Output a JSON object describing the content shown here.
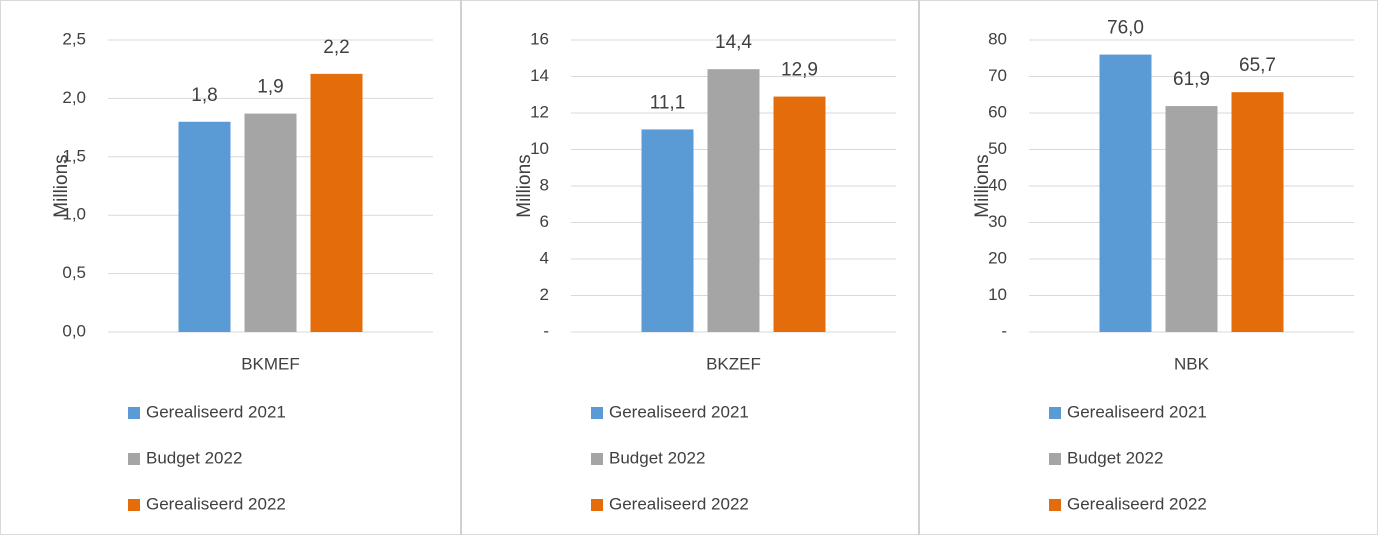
{
  "chart_data": [
    {
      "type": "bar",
      "ylabel": "Millions",
      "categories": [
        "BKMEF"
      ],
      "series": [
        {
          "name": "Gerealiseerd 2021",
          "color": "#5b9bd5",
          "values": [
            1.8
          ],
          "value_labels": [
            "1,8"
          ]
        },
        {
          "name": "Budget 2022",
          "color": "#a5a5a5",
          "values": [
            1.87
          ],
          "value_labels": [
            "1,9"
          ]
        },
        {
          "name": "Gerealiseerd 2022",
          "color": "#e46c0a",
          "values": [
            2.21
          ],
          "value_labels": [
            "2,2"
          ]
        }
      ],
      "ylim": [
        0,
        2.5
      ],
      "yticks": [
        {
          "value": 0,
          "label": "0,0"
        },
        {
          "value": 0.5,
          "label": "0,5"
        },
        {
          "value": 1,
          "label": "1,0"
        },
        {
          "value": 1.5,
          "label": "1,5"
        },
        {
          "value": 2,
          "label": "2,0"
        },
        {
          "value": 2.5,
          "label": "2,5"
        }
      ],
      "grid": true,
      "legend": "bottom"
    },
    {
      "type": "bar",
      "ylabel": "Millions",
      "categories": [
        "BKZEF"
      ],
      "series": [
        {
          "name": "Gerealiseerd 2021",
          "color": "#5b9bd5",
          "values": [
            11.1
          ],
          "value_labels": [
            "11,1"
          ]
        },
        {
          "name": "Budget 2022",
          "color": "#a5a5a5",
          "values": [
            14.4
          ],
          "value_labels": [
            "14,4"
          ]
        },
        {
          "name": "Gerealiseerd 2022",
          "color": "#e46c0a",
          "values": [
            12.9
          ],
          "value_labels": [
            "12,9"
          ]
        }
      ],
      "ylim": [
        0,
        16
      ],
      "yticks": [
        {
          "value": 0,
          "label": "-"
        },
        2,
        4,
        6,
        8,
        10,
        12,
        14,
        16
      ],
      "grid": true,
      "legend": "bottom"
    },
    {
      "type": "bar",
      "ylabel": "Millions",
      "categories": [
        "NBK"
      ],
      "series": [
        {
          "name": "Gerealiseerd 2021",
          "color": "#5b9bd5",
          "values": [
            76.0
          ],
          "value_labels": [
            "76,0"
          ]
        },
        {
          "name": "Budget 2022",
          "color": "#a5a5a5",
          "values": [
            61.9
          ],
          "value_labels": [
            "61,9"
          ]
        },
        {
          "name": "Gerealiseerd 2022",
          "color": "#e46c0a",
          "values": [
            65.7
          ],
          "value_labels": [
            "65,7"
          ]
        }
      ],
      "ylim": [
        0,
        80
      ],
      "yticks": [
        {
          "value": 0,
          "label": "-"
        },
        10,
        20,
        30,
        40,
        50,
        60,
        70,
        80
      ],
      "grid": true,
      "legend": "bottom"
    }
  ]
}
